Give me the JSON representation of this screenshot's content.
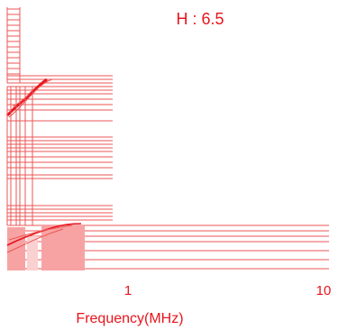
{
  "colors": {
    "accent": "#e8141c",
    "grid_line": "#ee5555",
    "fill_block": "#f7a3a3",
    "background": "#ffffff"
  },
  "chart_data": {
    "type": "line",
    "title": "H : 6.5",
    "xlabel": "Frequency(MHz)",
    "ylabel": "",
    "x_scale": "log",
    "x_ticks": [
      {
        "value": 1,
        "label": "1"
      },
      {
        "value": 10,
        "label": "10"
      }
    ],
    "grid": true,
    "series": []
  }
}
